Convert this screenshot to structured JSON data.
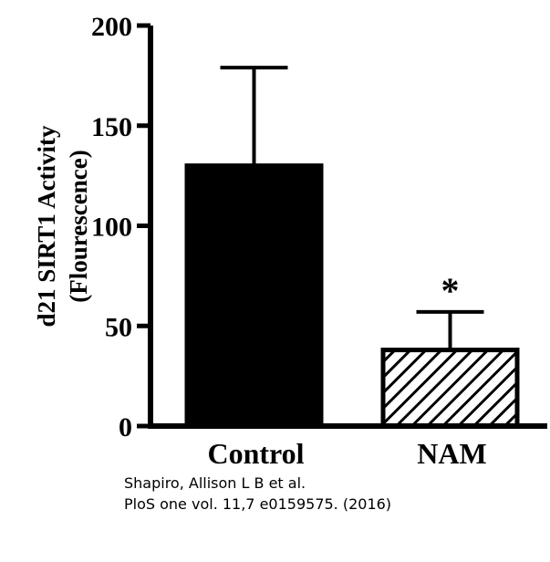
{
  "chart_data": {
    "type": "bar",
    "title": "",
    "xlabel": "",
    "ylabel_line1": "d21 SIRT1 Activity",
    "ylabel_line2": "(Flourescence)",
    "categories": [
      "Control",
      "NAM"
    ],
    "values": [
      130,
      38
    ],
    "error_upper": [
      179,
      57
    ],
    "fills": [
      "solid",
      "hatched"
    ],
    "ylim": [
      0,
      200
    ],
    "yticks": [
      0,
      50,
      100,
      150,
      200
    ],
    "ytick_labels": [
      "0",
      "50",
      "100",
      "150",
      "200"
    ],
    "annotation": {
      "category": "NAM",
      "text": "*"
    },
    "grid": false,
    "colors": {
      "bar": "#000000",
      "hatch_bg": "#ffffff"
    }
  },
  "citation": {
    "line1": "Shapiro, Allison L B et al.",
    "line2": "PloS one vol. 11,7 e0159575. (2016)"
  }
}
